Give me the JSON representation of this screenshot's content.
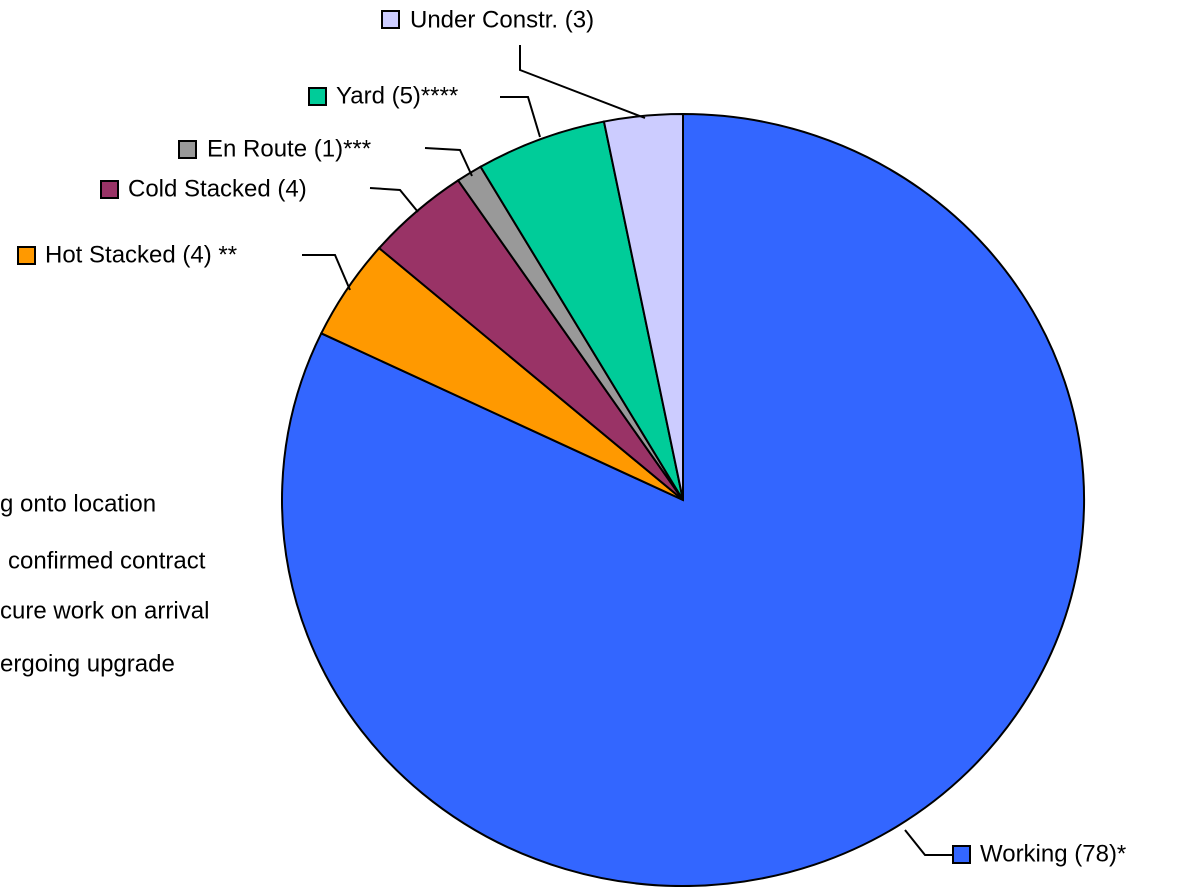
{
  "chart_data": {
    "type": "pie",
    "categories": [
      "Working (78)*",
      "Hot Stacked (4) **",
      "Cold Stacked (4)",
      "En Route (1)***",
      "Yard (5)****",
      "Under Constr. (3)"
    ],
    "values": [
      78,
      4,
      4,
      1,
      5,
      3
    ],
    "colors": [
      "#3366ff",
      "#ff9900",
      "#993366",
      "#999999",
      "#00cc99",
      "#ccccff"
    ],
    "notes": [
      "g onto location",
      "confirmed contract",
      "cure work on arrival",
      "ergoing upgrade"
    ]
  }
}
